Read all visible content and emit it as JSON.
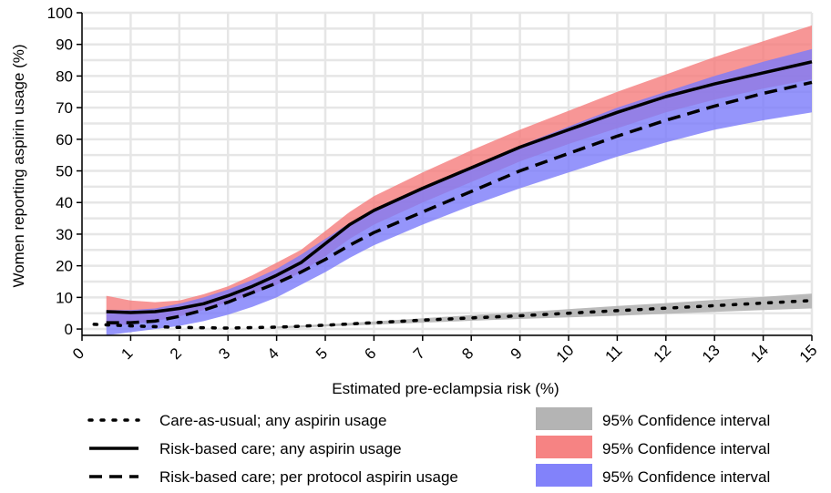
{
  "chart_data": {
    "type": "line",
    "title": "",
    "xlabel": "Estimated pre-eclampsia risk (%)",
    "ylabel": "Women reporting aspirin usage (%)",
    "xlim": [
      0,
      15
    ],
    "ylim": [
      -2,
      100
    ],
    "x_ticks": [
      0,
      1,
      2,
      3,
      4,
      5,
      6,
      7,
      8,
      9,
      10,
      11,
      12,
      13,
      14,
      15
    ],
    "y_ticks": [
      0,
      10,
      20,
      30,
      40,
      50,
      60,
      70,
      80,
      90,
      100
    ],
    "grid": true,
    "legend_position": "bottom",
    "series": [
      {
        "name": "Care-as-usual; any aspirin usage",
        "style": "dotted",
        "color": "#000000",
        "x": [
          0.25,
          1,
          2,
          3,
          4,
          5,
          6,
          7,
          8,
          9,
          10,
          11,
          12,
          13,
          14,
          15
        ],
        "y": [
          1.5,
          1,
          0.5,
          0.3,
          0.6,
          1.2,
          2,
          2.8,
          3.5,
          4.2,
          5,
          5.8,
          6.6,
          7.4,
          8.2,
          9
        ]
      },
      {
        "name": "Risk-based care; any aspirin usage",
        "style": "solid",
        "color": "#000000",
        "x": [
          0.5,
          1,
          1.5,
          2,
          2.5,
          3,
          3.5,
          4,
          4.5,
          5,
          5.5,
          6,
          7,
          8,
          9,
          10,
          11,
          12,
          13,
          14,
          15
        ],
        "y": [
          5.5,
          5.2,
          5.5,
          6.5,
          8,
          10.5,
          13.5,
          17,
          21,
          27,
          33,
          37.5,
          44.5,
          51,
          57.5,
          63,
          68.5,
          73.5,
          77.5,
          81,
          84.5
        ]
      },
      {
        "name": "Risk-based care; per protocol aspirin usage",
        "style": "dashed",
        "color": "#000000",
        "x": [
          0.5,
          1,
          1.5,
          2,
          2.5,
          3,
          3.5,
          4,
          4.5,
          5,
          5.5,
          6,
          7,
          8,
          9,
          10,
          11,
          12,
          13,
          14,
          15
        ],
        "y": [
          2,
          2,
          2.5,
          4,
          6,
          8.5,
          11.5,
          14.5,
          18,
          22,
          26.5,
          30.5,
          37,
          43.5,
          50,
          55.5,
          61,
          66,
          70.5,
          74.5,
          78
        ]
      }
    ],
    "bands": [
      {
        "name": "95% Confidence interval",
        "for_series": "Care-as-usual; any aspirin usage",
        "color": "#b4b4b4",
        "x": [
          4,
          5,
          6,
          7,
          8,
          9,
          10,
          11,
          12,
          13,
          14,
          15
        ],
        "lower": [
          0.2,
          0.8,
          1.4,
          2,
          2.6,
          3.2,
          3.7,
          4.2,
          4.8,
          5.4,
          6,
          6.5
        ],
        "upper": [
          0.8,
          1.5,
          2.4,
          3.4,
          4.4,
          5.3,
          6.3,
          7.3,
          8.2,
          9.2,
          10.2,
          11.2
        ]
      },
      {
        "name": "95% Confidence interval",
        "for_series": "Risk-based care; any aspirin usage",
        "color": "#f57c7c",
        "x": [
          0.5,
          1,
          1.5,
          2,
          2.5,
          3,
          3.5,
          4,
          4.5,
          5,
          5.5,
          6,
          7,
          8,
          9,
          10,
          11,
          12,
          13,
          14,
          15
        ],
        "lower": [
          1,
          1.5,
          2.5,
          4,
          6,
          8.5,
          11,
          14,
          18,
          23,
          28.5,
          33,
          40,
          46.5,
          53,
          58.5,
          63.5,
          68.5,
          72.5,
          76,
          79
        ],
        "upper": [
          10.5,
          9,
          8.5,
          9,
          11,
          13.5,
          17,
          21,
          25,
          31,
          37,
          42,
          49.5,
          56.5,
          63,
          69,
          75,
          80.5,
          86,
          91,
          96
        ]
      },
      {
        "name": "95% Confidence interval",
        "for_series": "Risk-based care; per protocol aspirin usage",
        "color": "#7b7bfa",
        "x": [
          0.5,
          1,
          1.5,
          2,
          2.5,
          3,
          3.5,
          4,
          4.5,
          5,
          5.5,
          6,
          7,
          8,
          9,
          10,
          11,
          12,
          13,
          14,
          15
        ],
        "lower": [
          -2,
          -1,
          0,
          1,
          2.5,
          4.5,
          7,
          10,
          14,
          18,
          22.5,
          26.5,
          33,
          39,
          44.5,
          49.5,
          54.5,
          59,
          63,
          66,
          68.5
        ],
        "upper": [
          6,
          6,
          6.5,
          8,
          10,
          12.5,
          15.5,
          19,
          23.5,
          28.5,
          33.5,
          37.5,
          44.5,
          51,
          58,
          64,
          70,
          75,
          80,
          84.5,
          88.5
        ]
      }
    ],
    "legend": {
      "lines": [
        {
          "label": "Care-as-usual; any aspirin usage",
          "style": "dotted"
        },
        {
          "label": "Risk-based care; any aspirin usage",
          "style": "solid"
        },
        {
          "label": "Risk-based care; per protocol aspirin usage",
          "style": "dashed"
        }
      ],
      "bands": [
        {
          "label": "95% Confidence interval",
          "color": "#b4b4b4"
        },
        {
          "label": "95% Confidence interval",
          "color": "#f57c7c"
        },
        {
          "label": "95% Confidence interval",
          "color": "#7b7bfa"
        }
      ]
    }
  }
}
